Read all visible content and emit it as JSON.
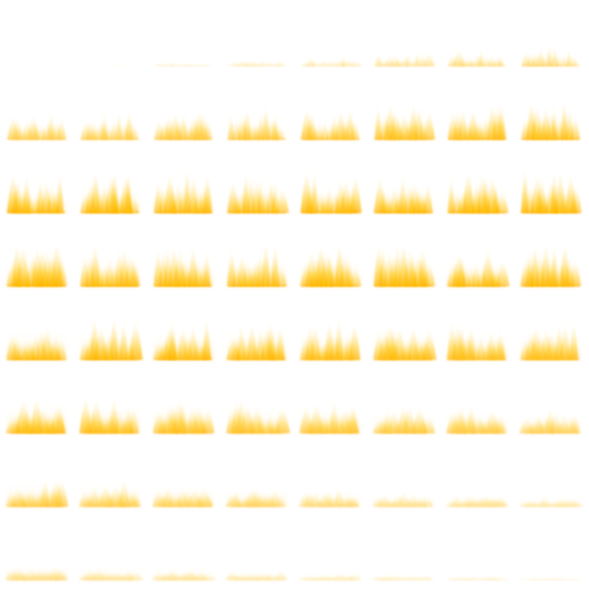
{
  "sprite_sheet": {
    "subject": "fire-flame-animation",
    "columns": 8,
    "rows": 8,
    "frame_count": 64,
    "colors": {
      "background": "#ffffff",
      "flame_core": "#ffd400",
      "flame_mid": "#ffb300",
      "flame_outer": "#ffe9a8"
    },
    "frames": [
      {
        "index": 0,
        "intensity": 0.0
      },
      {
        "index": 1,
        "intensity": 0.02
      },
      {
        "index": 2,
        "intensity": 0.08
      },
      {
        "index": 3,
        "intensity": 0.14
      },
      {
        "index": 4,
        "intensity": 0.22
      },
      {
        "index": 5,
        "intensity": 0.3
      },
      {
        "index": 6,
        "intensity": 0.38
      },
      {
        "index": 7,
        "intensity": 0.45
      },
      {
        "index": 8,
        "intensity": 0.55
      },
      {
        "index": 9,
        "intensity": 0.58
      },
      {
        "index": 10,
        "intensity": 0.62
      },
      {
        "index": 11,
        "intensity": 0.66
      },
      {
        "index": 12,
        "intensity": 0.7
      },
      {
        "index": 13,
        "intensity": 0.72
      },
      {
        "index": 14,
        "intensity": 0.75
      },
      {
        "index": 15,
        "intensity": 0.78
      },
      {
        "index": 16,
        "intensity": 0.85
      },
      {
        "index": 17,
        "intensity": 0.86
      },
      {
        "index": 18,
        "intensity": 0.87
      },
      {
        "index": 19,
        "intensity": 0.88
      },
      {
        "index": 20,
        "intensity": 0.88
      },
      {
        "index": 21,
        "intensity": 0.88
      },
      {
        "index": 22,
        "intensity": 0.88
      },
      {
        "index": 23,
        "intensity": 0.88
      },
      {
        "index": 24,
        "intensity": 0.95
      },
      {
        "index": 25,
        "intensity": 0.95
      },
      {
        "index": 26,
        "intensity": 0.92
      },
      {
        "index": 27,
        "intensity": 0.92
      },
      {
        "index": 28,
        "intensity": 0.9
      },
      {
        "index": 29,
        "intensity": 0.9
      },
      {
        "index": 30,
        "intensity": 0.88
      },
      {
        "index": 31,
        "intensity": 0.88
      },
      {
        "index": 32,
        "intensity": 0.9
      },
      {
        "index": 33,
        "intensity": 0.88
      },
      {
        "index": 34,
        "intensity": 0.86
      },
      {
        "index": 35,
        "intensity": 0.84
      },
      {
        "index": 36,
        "intensity": 0.82
      },
      {
        "index": 37,
        "intensity": 0.8
      },
      {
        "index": 38,
        "intensity": 0.78
      },
      {
        "index": 39,
        "intensity": 0.76
      },
      {
        "index": 40,
        "intensity": 0.8
      },
      {
        "index": 41,
        "intensity": 0.78
      },
      {
        "index": 42,
        "intensity": 0.74
      },
      {
        "index": 43,
        "intensity": 0.7
      },
      {
        "index": 44,
        "intensity": 0.66
      },
      {
        "index": 45,
        "intensity": 0.62
      },
      {
        "index": 46,
        "intensity": 0.58
      },
      {
        "index": 47,
        "intensity": 0.54
      },
      {
        "index": 48,
        "intensity": 0.62
      },
      {
        "index": 49,
        "intensity": 0.58
      },
      {
        "index": 50,
        "intensity": 0.52
      },
      {
        "index": 51,
        "intensity": 0.46
      },
      {
        "index": 52,
        "intensity": 0.4
      },
      {
        "index": 53,
        "intensity": 0.34
      },
      {
        "index": 54,
        "intensity": 0.28
      },
      {
        "index": 55,
        "intensity": 0.22
      },
      {
        "index": 56,
        "intensity": 0.36
      },
      {
        "index": 57,
        "intensity": 0.3
      },
      {
        "index": 58,
        "intensity": 0.26
      },
      {
        "index": 59,
        "intensity": 0.22
      },
      {
        "index": 60,
        "intensity": 0.16
      },
      {
        "index": 61,
        "intensity": 0.12
      },
      {
        "index": 62,
        "intensity": 0.09
      },
      {
        "index": 63,
        "intensity": 0.06
      }
    ]
  }
}
